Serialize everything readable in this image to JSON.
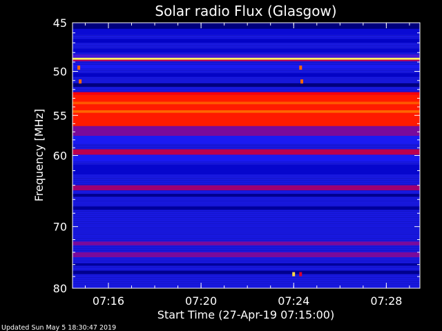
{
  "chart_data": {
    "type": "heatmap",
    "title": "Solar radio Flux (Glasgow)",
    "xlabel": "Start Time (27-Apr-19 07:15:00)",
    "ylabel": "Frequency [MHz]",
    "footer": "Updated Sun May  5 18:30:47 2019",
    "x_range_minutes": [
      7.45,
      22.45
    ],
    "x_ticks": [
      {
        "minutes": 9,
        "label": "07:16"
      },
      {
        "minutes": 13,
        "label": "07:20"
      },
      {
        "minutes": 17,
        "label": "07:24"
      },
      {
        "minutes": 21,
        "label": "07:28"
      }
    ],
    "y_scale": "log",
    "y_range_mhz": [
      45,
      80
    ],
    "y_major_ticks": [
      45,
      50,
      55,
      60,
      70,
      80
    ],
    "y_minor_ticks": [
      46,
      47,
      48,
      49,
      51,
      52,
      53,
      54,
      56,
      57,
      58,
      59,
      62,
      64,
      66,
      68,
      72,
      74,
      76,
      78
    ],
    "background_color": "#1818e0",
    "colorscale": [
      "#000060",
      "#0000c0",
      "#2020ff",
      "#a00070",
      "#ff0000",
      "#ff8000",
      "#ffff60"
    ],
    "bands": [
      {
        "from_mhz": 45.0,
        "to_mhz": 45.6,
        "level": 0.05
      },
      {
        "from_mhz": 45.6,
        "to_mhz": 46.2,
        "level": 0.22
      },
      {
        "from_mhz": 46.6,
        "to_mhz": 47.0,
        "level": 0.18
      },
      {
        "from_mhz": 47.6,
        "to_mhz": 48.0,
        "level": 0.2
      },
      {
        "from_mhz": 48.2,
        "to_mhz": 48.55,
        "level": 0.38
      },
      {
        "from_mhz": 48.55,
        "to_mhz": 48.75,
        "level": 1.0
      },
      {
        "from_mhz": 48.75,
        "to_mhz": 48.9,
        "level": 0.55
      },
      {
        "from_mhz": 49.3,
        "to_mhz": 49.7,
        "level": 0.3
      },
      {
        "from_mhz": 50.2,
        "to_mhz": 50.6,
        "level": 0.18
      },
      {
        "from_mhz": 51.3,
        "to_mhz": 51.7,
        "level": 0.05
      },
      {
        "from_mhz": 52.3,
        "to_mhz": 52.6,
        "level": 0.65
      },
      {
        "from_mhz": 52.6,
        "to_mhz": 56.3,
        "level": 0.7
      },
      {
        "from_mhz": 53.4,
        "to_mhz": 53.7,
        "level": 0.78
      },
      {
        "from_mhz": 54.4,
        "to_mhz": 54.7,
        "level": 0.8
      },
      {
        "from_mhz": 56.3,
        "to_mhz": 57.5,
        "level": 0.45
      },
      {
        "from_mhz": 57.5,
        "to_mhz": 58.5,
        "level": 0.3
      },
      {
        "from_mhz": 59.2,
        "to_mhz": 59.9,
        "level": 0.55
      },
      {
        "from_mhz": 59.9,
        "to_mhz": 60.8,
        "level": 0.3
      },
      {
        "from_mhz": 61.2,
        "to_mhz": 62.5,
        "level": 0.2
      },
      {
        "from_mhz": 64.0,
        "to_mhz": 64.7,
        "level": 0.5
      },
      {
        "from_mhz": 65.2,
        "to_mhz": 65.6,
        "level": 0.08
      },
      {
        "from_mhz": 67.0,
        "to_mhz": 67.5,
        "level": 0.1
      },
      {
        "from_mhz": 72.3,
        "to_mhz": 72.9,
        "level": 0.45
      },
      {
        "from_mhz": 74.0,
        "to_mhz": 74.8,
        "level": 0.45
      },
      {
        "from_mhz": 75.8,
        "to_mhz": 76.2,
        "level": 0.1
      },
      {
        "from_mhz": 77.0,
        "to_mhz": 77.6,
        "level": 0.08
      }
    ],
    "spots": [
      {
        "minutes": 7.72,
        "mhz": 49.6,
        "level": 0.8
      },
      {
        "minutes": 7.78,
        "mhz": 51.1,
        "level": 0.8
      },
      {
        "minutes": 17.3,
        "mhz": 49.6,
        "level": 0.8
      },
      {
        "minutes": 17.35,
        "mhz": 51.1,
        "level": 0.8
      },
      {
        "minutes": 17.0,
        "mhz": 77.6,
        "level": 0.95
      },
      {
        "minutes": 17.3,
        "mhz": 77.6,
        "level": 0.6
      }
    ]
  }
}
